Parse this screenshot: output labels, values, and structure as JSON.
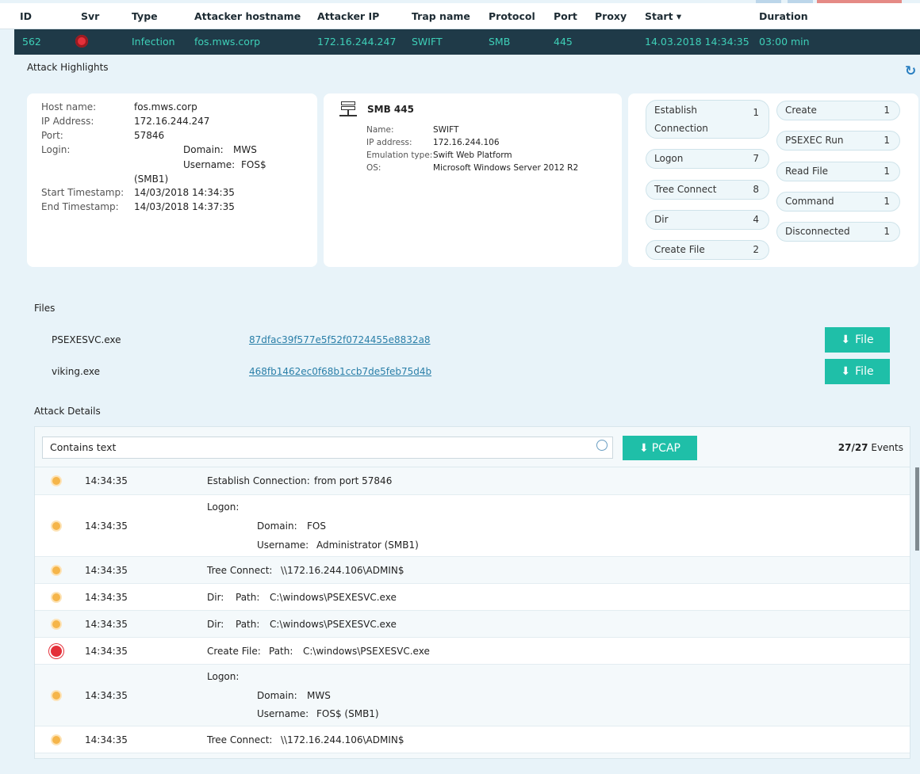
{
  "colors": {
    "accent": "#1fbfa8",
    "row_bg": "#1f3a48",
    "row_text": "#3ed0b8",
    "severity_high": "#e4303a",
    "event_dot": "#f5b54a"
  },
  "table": {
    "headers": [
      "ID",
      "Svr",
      "Type",
      "Attacker hostname",
      "Attacker IP",
      "Trap name",
      "Protocol",
      "Port",
      "Proxy",
      "Start ▾",
      "Duration"
    ],
    "row": {
      "id": "562",
      "severity_icon": "target-icon",
      "type": "Infection",
      "hostname": "fos.mws.corp",
      "ip": "172.16.244.247",
      "trap": "SWIFT",
      "protocol": "SMB",
      "port": "445",
      "proxy": "",
      "start": "14.03.2018 14:34:35",
      "duration": "03:00 min"
    }
  },
  "highlights": {
    "title": "Attack Highlights",
    "refresh_icon": "refresh-icon",
    "attacker": {
      "host_label": "Host name:",
      "host": "fos.mws.corp",
      "ip_label": "IP Address:",
      "ip": "172.16.244.247",
      "port_label": "Port:",
      "port": "57846",
      "login_label": "Login:",
      "domain_label": "Domain:",
      "domain": "MWS",
      "username_label": "Username:",
      "username": "FOS$",
      "login_suffix": "(SMB1)",
      "start_label": "Start Timestamp:",
      "start": "14/03/2018 14:34:35",
      "end_label": "End Timestamp:",
      "end": "14/03/2018 14:37:35"
    },
    "trap": {
      "title": "SMB 445",
      "name_label": "Name:",
      "name": "SWIFT",
      "ip_label": "IP address:",
      "ip": "172.16.244.106",
      "emu_label": "Emulation type:",
      "emu": "Swift Web Platform",
      "os_label": "OS:",
      "os": "Microsoft Windows Server 2012 R2"
    },
    "events_left": [
      {
        "label": "Establish Connection",
        "count": "1"
      },
      {
        "label": "Logon",
        "count": "7"
      },
      {
        "label": "Tree Connect",
        "count": "8"
      },
      {
        "label": "Dir",
        "count": "4"
      },
      {
        "label": "Create File",
        "count": "2"
      }
    ],
    "events_right": [
      {
        "label": "Create",
        "count": "1"
      },
      {
        "label": "PSEXEC Run",
        "count": "1"
      },
      {
        "label": "Read File",
        "count": "1"
      },
      {
        "label": "Command",
        "count": "1"
      },
      {
        "label": "Disconnected",
        "count": "1"
      }
    ]
  },
  "files": {
    "title": "Files",
    "items": [
      {
        "name": "PSEXESVC.exe",
        "hash": "87dfac39f577e5f52f0724455e8832a8",
        "button": "File"
      },
      {
        "name": "viking.exe",
        "hash": "468fb1462ec0f68b1ccb7de5feb75d4b",
        "button": "File"
      }
    ]
  },
  "details": {
    "title": "Attack Details",
    "search_value": "Contains text",
    "pcap_button": "PCAP",
    "count": "27/27",
    "count_suffix": "Events",
    "events": [
      {
        "time": "14:34:35",
        "type": "Establish Connection:",
        "text": "from port 57846"
      },
      {
        "time": "14:34:35",
        "type": "Logon:",
        "domain_label": "Domain:",
        "domain": "FOS",
        "username_label": "Username:",
        "username": "Administrator (SMB1)"
      },
      {
        "time": "14:34:35",
        "type": "Tree Connect:",
        "text": "\\\\172.16.244.106\\ADMIN$"
      },
      {
        "time": "14:34:35",
        "type": "Dir:",
        "path_label": "Path:",
        "text": "C:\\windows\\PSEXESVC.exe"
      },
      {
        "time": "14:34:35",
        "type": "Dir:",
        "path_label": "Path:",
        "text": "C:\\windows\\PSEXESVC.exe"
      },
      {
        "time": "14:34:35",
        "type": "Create File:",
        "path_label": "Path:",
        "text": "C:\\windows\\PSEXESVC.exe",
        "severity": "high"
      },
      {
        "time": "14:34:35",
        "type": "Logon:",
        "domain_label": "Domain:",
        "domain": "MWS",
        "username_label": "Username:",
        "username": "FOS$ (SMB1)"
      },
      {
        "time": "14:34:35",
        "type": "Tree Connect:",
        "text": "\\\\172.16.244.106\\ADMIN$"
      }
    ]
  }
}
